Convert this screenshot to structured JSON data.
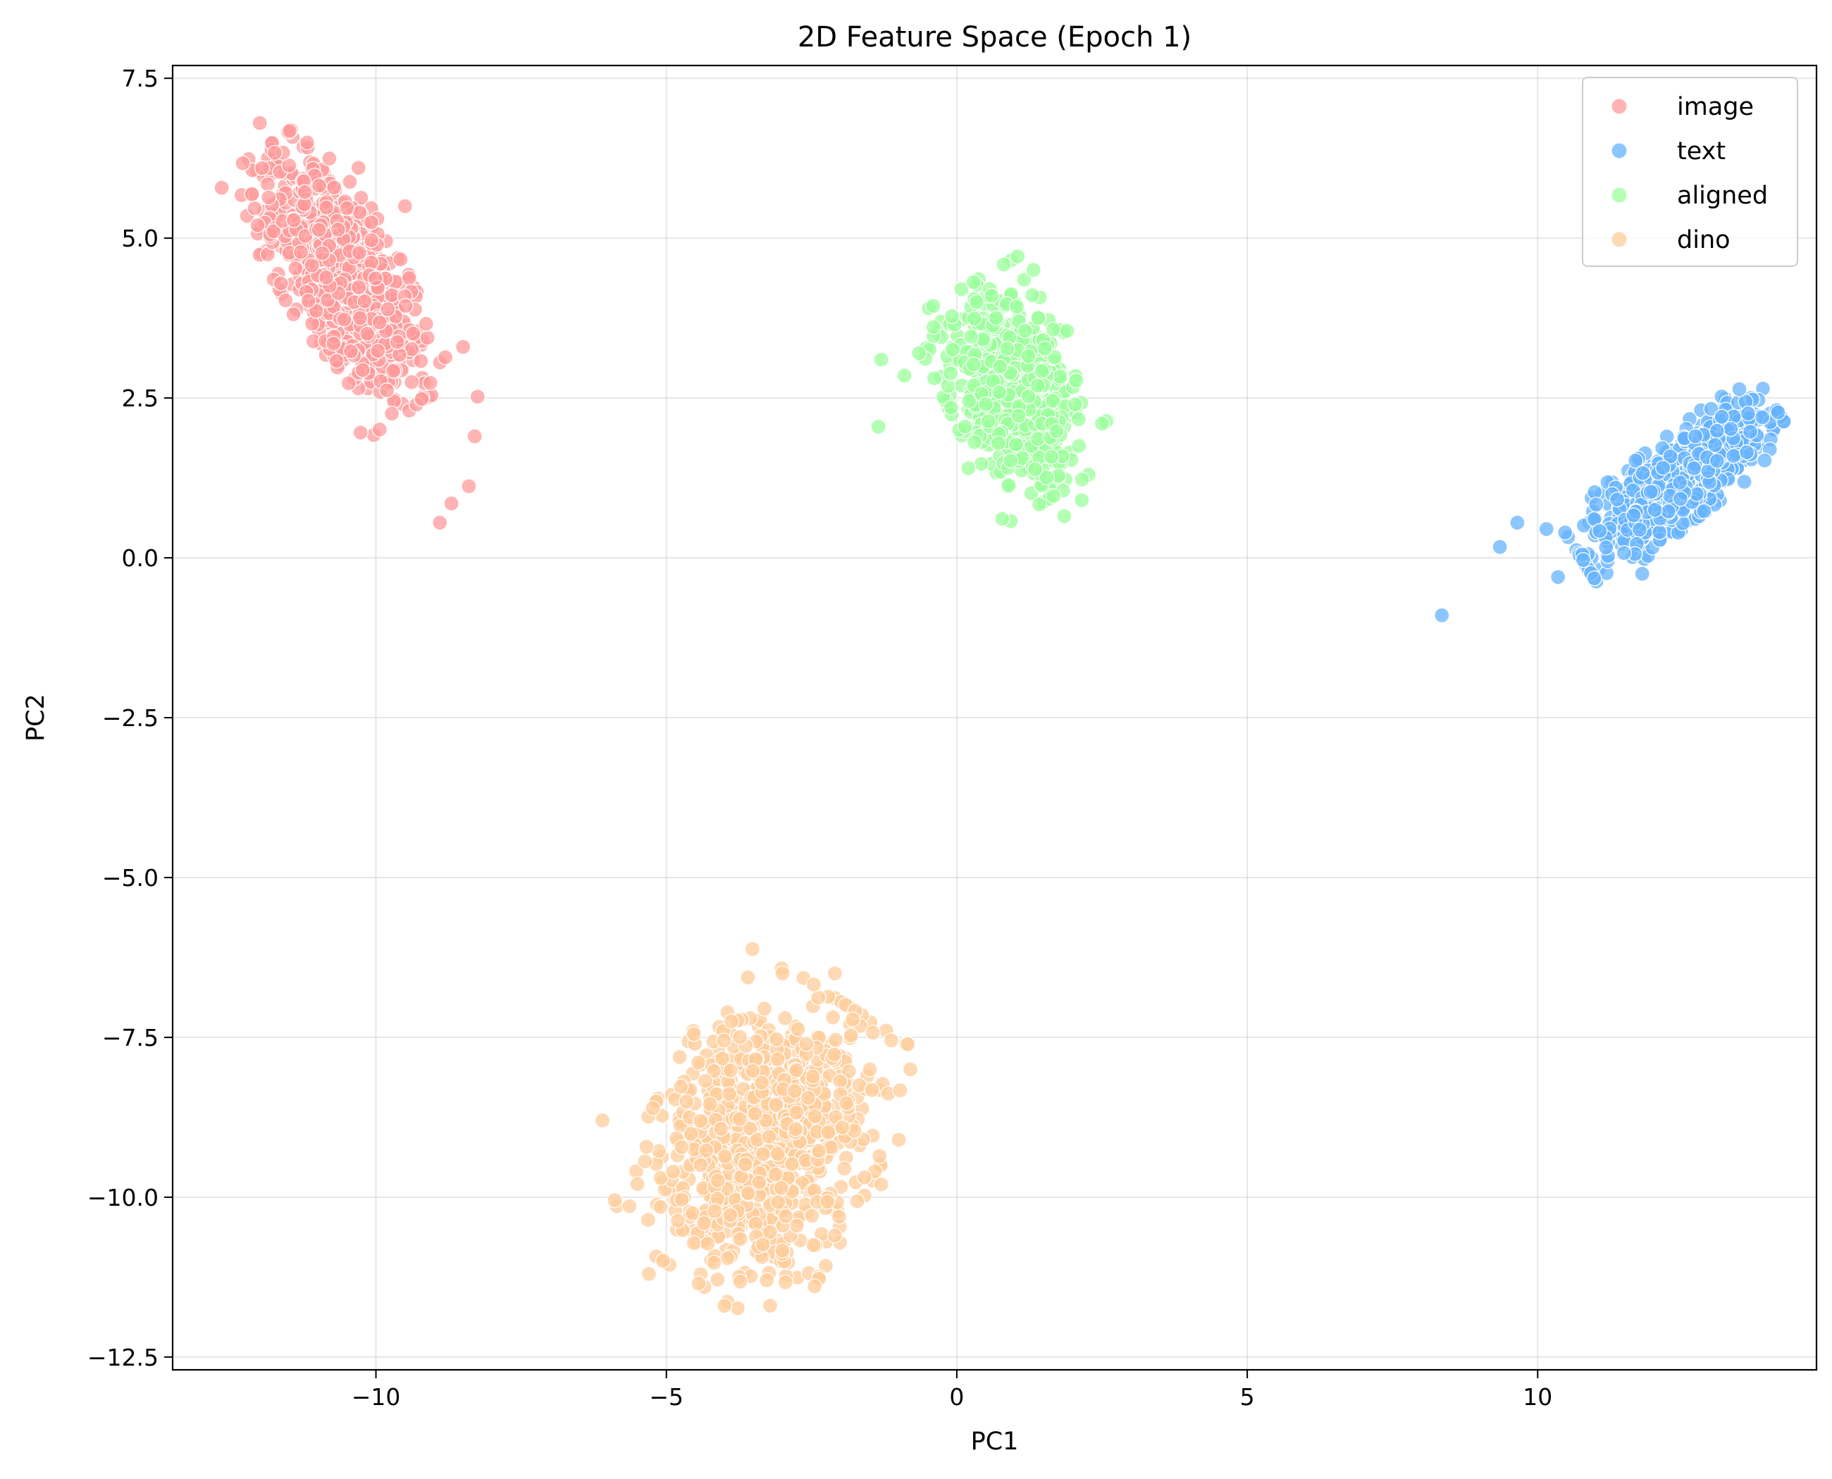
{
  "chart_data": {
    "type": "scatter",
    "title": "2D Feature Space (Epoch 1)",
    "xlabel": "PC1",
    "ylabel": "PC2",
    "xlim": [
      -13.5,
      14.8
    ],
    "ylim": [
      -12.7,
      7.7
    ],
    "xticks": [
      -10,
      -5,
      0,
      5,
      10
    ],
    "xtick_labels": [
      "−10",
      "−5",
      "0",
      "5",
      "10"
    ],
    "yticks": [
      7.5,
      5.0,
      2.5,
      0.0,
      -2.5,
      -5.0,
      -7.5,
      -10.0,
      -12.5
    ],
    "ytick_labels": [
      "7.5",
      "5.0",
      "2.5",
      "0.0",
      "−2.5",
      "−5.0",
      "−7.5",
      "−10.0",
      "−12.5"
    ],
    "grid": true,
    "legend_position": "top-right",
    "series": [
      {
        "name": "image",
        "color": "#ff9999",
        "center": [
          -10.6,
          4.4
        ],
        "spread_major": 1.0,
        "spread_minor": 0.42,
        "angle_deg": -58,
        "count": 900,
        "outliers": [
          [
            -12.0,
            6.8
          ],
          [
            -8.9,
            0.55
          ],
          [
            -8.7,
            0.85
          ],
          [
            -8.4,
            1.12
          ],
          [
            -8.25,
            2.52
          ],
          [
            -9.5,
            5.5
          ],
          [
            -10.3,
            6.1
          ],
          [
            -8.3,
            1.9
          ],
          [
            -8.5,
            3.3
          ]
        ]
      },
      {
        "name": "text",
        "color": "#66b3ff",
        "center": [
          12.4,
          1.2
        ],
        "spread_major": 0.85,
        "spread_minor": 0.28,
        "angle_deg": 35,
        "count": 700,
        "outliers": [
          [
            8.35,
            -0.9
          ],
          [
            9.35,
            0.17
          ],
          [
            9.65,
            0.55
          ],
          [
            10.15,
            0.45
          ],
          [
            10.35,
            -0.3
          ],
          [
            11.8,
            -0.25
          ],
          [
            13.6,
            1.65
          ]
        ]
      },
      {
        "name": "aligned",
        "color": "#99ff99",
        "center": [
          1.0,
          2.65
        ],
        "spread_major": 0.75,
        "spread_minor": 0.48,
        "angle_deg": -62,
        "count": 650,
        "outliers": [
          [
            -1.35,
            2.05
          ],
          [
            -1.3,
            3.1
          ],
          [
            -0.9,
            2.85
          ],
          [
            -0.65,
            3.2
          ],
          [
            1.85,
            0.65
          ],
          [
            2.15,
            0.9
          ],
          [
            1.9,
            3.55
          ],
          [
            0.6,
            4.1
          ],
          [
            0.2,
            1.4
          ],
          [
            2.5,
            2.1
          ]
        ]
      },
      {
        "name": "dino",
        "color": "#ffcc99",
        "center": [
          -3.3,
          -9.1
        ],
        "spread_major": 1.05,
        "spread_minor": 0.8,
        "angle_deg": 60,
        "count": 900,
        "outliers": [
          [
            -6.1,
            -8.8
          ],
          [
            -5.3,
            -11.2
          ],
          [
            -4.0,
            -11.7
          ],
          [
            -2.1,
            -6.5
          ],
          [
            -3.0,
            -6.5
          ],
          [
            -0.8,
            -8.0
          ],
          [
            -1.0,
            -9.1
          ],
          [
            -2.1,
            -10.6
          ],
          [
            -1.3,
            -9.8
          ]
        ]
      }
    ]
  }
}
